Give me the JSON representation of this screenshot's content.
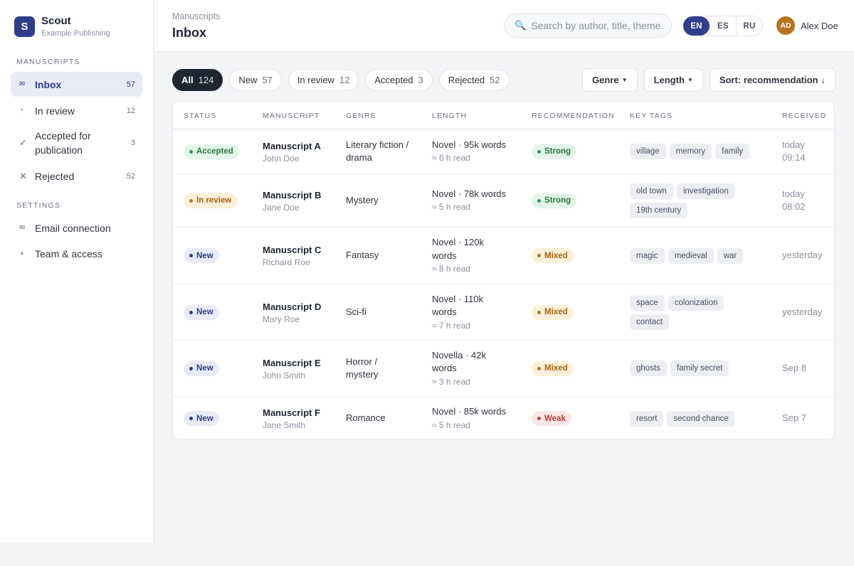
{
  "app": {
    "name": "Scout",
    "org": "Example Publishing",
    "logo_letter": "S"
  },
  "sidebar": {
    "section_manuscripts": "Manuscripts",
    "section_settings": "Settings",
    "items": [
      {
        "label": "Inbox",
        "count": "57",
        "icon": "mail-icon"
      },
      {
        "label": "In review",
        "count": "12",
        "icon": "clock-icon"
      },
      {
        "label": "Accepted for publication",
        "count": "3",
        "icon": "check-icon"
      },
      {
        "label": "Rejected",
        "count": "52",
        "icon": "x-icon"
      }
    ],
    "settings_items": [
      {
        "label": "Email connection",
        "icon": "mail-icon"
      },
      {
        "label": "Team & access",
        "icon": "half-circle-icon"
      }
    ]
  },
  "header": {
    "breadcrumb": "Manuscripts",
    "title": "Inbox",
    "search_placeholder": "Search by author, title, theme…",
    "languages": [
      "EN",
      "ES",
      "RU"
    ],
    "active_language": "EN",
    "user": {
      "initials": "AD",
      "name": "Alex Doe"
    }
  },
  "filters": {
    "chips": [
      {
        "label": "All",
        "count": "124"
      },
      {
        "label": "New",
        "count": "57"
      },
      {
        "label": "In review",
        "count": "12"
      },
      {
        "label": "Accepted",
        "count": "3"
      },
      {
        "label": "Rejected",
        "count": "52"
      }
    ],
    "genre": "Genre",
    "length": "Length",
    "sort": "Sort: recommendation"
  },
  "table": {
    "columns": [
      "Status",
      "Manuscript",
      "Genre",
      "Length",
      "Recommendation",
      "Key tags",
      "Received"
    ],
    "rows": [
      {
        "status": "Accepted",
        "title": "Manuscript A",
        "author": "John Doe",
        "genre": "Literary fiction / drama",
        "length": "Novel · 95k words",
        "read": "≈ 6 h read",
        "rec": "Strong",
        "tags": [
          "village",
          "memory",
          "family"
        ],
        "received": "today 09:14"
      },
      {
        "status": "In review",
        "title": "Manuscript B",
        "author": "Jane Doe",
        "genre": "Mystery",
        "length": "Novel · 78k words",
        "read": "≈ 5 h read",
        "rec": "Strong",
        "tags": [
          "old town",
          "investigation",
          "19th century"
        ],
        "received": "today 08:02"
      },
      {
        "status": "New",
        "title": "Manuscript C",
        "author": "Richard Roe",
        "genre": "Fantasy",
        "length": "Novel · 120k words",
        "read": "≈ 8 h read",
        "rec": "Mixed",
        "tags": [
          "magic",
          "medieval",
          "war"
        ],
        "received": "yesterday"
      },
      {
        "status": "New",
        "title": "Manuscript D",
        "author": "Mary Roe",
        "genre": "Sci-fi",
        "length": "Novel · 110k words",
        "read": "≈ 7 h read",
        "rec": "Mixed",
        "tags": [
          "space",
          "colonization",
          "contact"
        ],
        "received": "yesterday"
      },
      {
        "status": "New",
        "title": "Manuscript E",
        "author": "John Smith",
        "genre": "Horror / mystery",
        "length": "Novella · 42k words",
        "read": "≈ 3 h read",
        "rec": "Mixed",
        "tags": [
          "ghosts",
          "family secret"
        ],
        "received": "Sep 8"
      },
      {
        "status": "New",
        "title": "Manuscript F",
        "author": "Jane Smith",
        "genre": "Romance",
        "length": "Novel · 85k words",
        "read": "≈ 5 h read",
        "rec": "Weak",
        "tags": [
          "resort",
          "second chance"
        ],
        "received": "Sep 7"
      }
    ]
  },
  "colors": {
    "brand": "#2f3d8a",
    "strong": "#2a7a45",
    "mixed": "#a5620e",
    "weak": "#b03a3a"
  }
}
